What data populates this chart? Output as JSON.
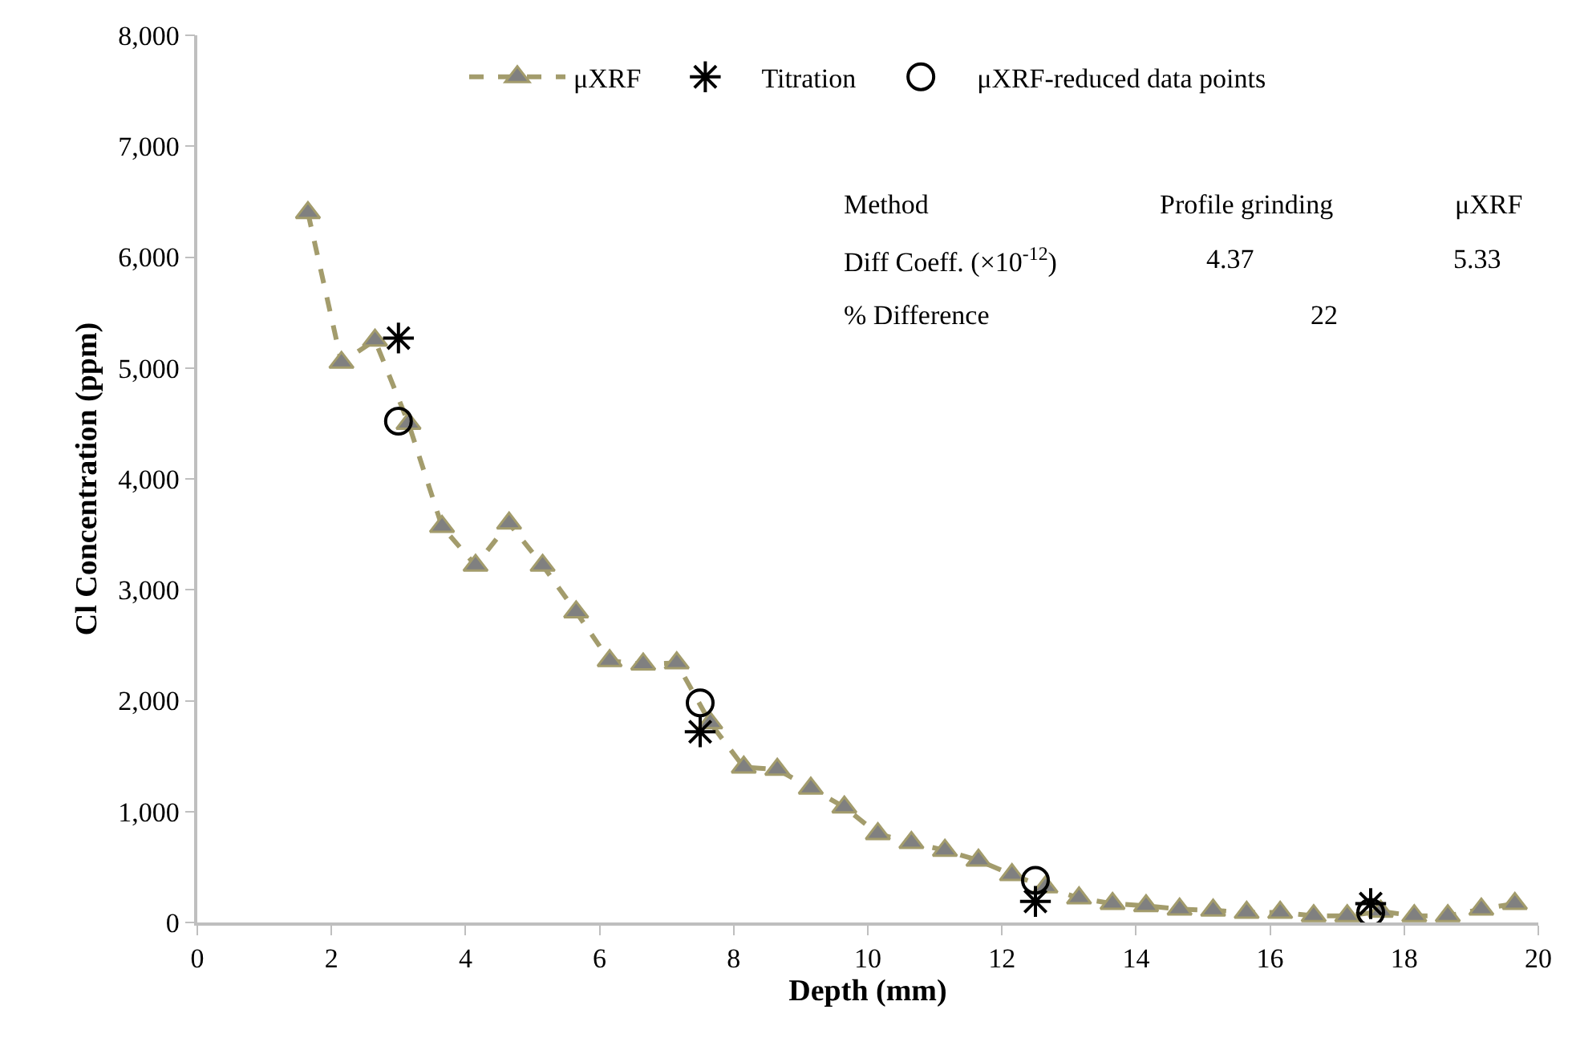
{
  "chart_data": {
    "type": "line",
    "xlabel": "Depth (mm)",
    "ylabel": "Cl Concentration (ppm)",
    "xlim": [
      0,
      20
    ],
    "xticks": [
      0,
      2,
      4,
      6,
      8,
      10,
      12,
      14,
      16,
      18,
      20
    ],
    "ylim": [
      0,
      8000
    ],
    "yticks": [
      {
        "value": 0,
        "label": "0"
      },
      {
        "value": 1000,
        "label": "1,000"
      },
      {
        "value": 2000,
        "label": "2,000"
      },
      {
        "value": 3000,
        "label": "3,000"
      },
      {
        "value": 4000,
        "label": "4,000"
      },
      {
        "value": 5000,
        "label": "5,000"
      },
      {
        "value": 6000,
        "label": "6,000"
      },
      {
        "value": 7000,
        "label": "7,000"
      },
      {
        "value": 8000,
        "label": "8,000"
      }
    ],
    "legend": "top",
    "series": [
      {
        "name": "μXRF",
        "color": "#a39c6c",
        "marker": "triangle",
        "line_style": "dashed",
        "x": [
          1.65,
          2.15,
          2.65,
          3.15,
          3.65,
          4.15,
          4.65,
          5.15,
          5.65,
          6.15,
          6.65,
          7.15,
          7.65,
          8.15,
          8.65,
          9.15,
          9.65,
          10.15,
          10.65,
          11.15,
          11.65,
          12.15,
          12.65,
          13.15,
          13.65,
          14.15,
          14.65,
          15.15,
          15.65,
          16.15,
          16.65,
          17.15,
          17.65,
          18.15,
          18.65,
          19.15,
          19.65
        ],
        "values": [
          6400,
          5050,
          5250,
          4500,
          3570,
          3220,
          3600,
          3220,
          2800,
          2360,
          2330,
          2340,
          1800,
          1400,
          1380,
          1210,
          1040,
          800,
          720,
          650,
          560,
          430,
          320,
          220,
          170,
          150,
          120,
          110,
          90,
          90,
          60,
          60,
          100,
          60,
          60,
          120,
          170
        ]
      },
      {
        "name": "Titration",
        "type": "scatter",
        "color": "#000000",
        "marker": "cross",
        "x": [
          3.0,
          7.5,
          12.5,
          17.5
        ],
        "values": [
          5270,
          1720,
          190,
          170
        ]
      },
      {
        "name": "μXRF-reduced data points",
        "type": "scatter",
        "color": "#000000",
        "marker": "circle",
        "x": [
          3.0,
          7.5,
          12.5,
          17.5
        ],
        "values": [
          4520,
          1980,
          380,
          90
        ]
      }
    ],
    "annotations": [
      "Method",
      "Profile grinding",
      "μXRF",
      "Diff Coeff. (×10$^{-12}$)",
      "4.37",
      "5.33",
      "% Difference",
      "22"
    ]
  }
}
